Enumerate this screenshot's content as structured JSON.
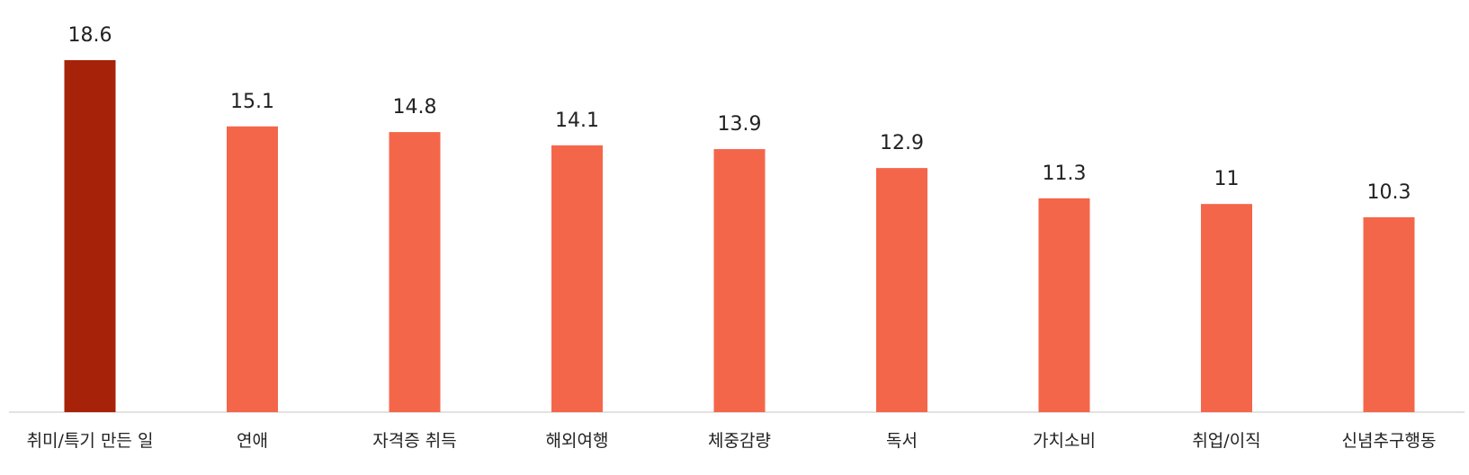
{
  "chart_data": {
    "type": "bar",
    "categories": [
      "취미/특기 만든 일",
      "연애",
      "자격증 취득",
      "해외여행",
      "체중감량",
      "독서",
      "가치소비",
      "취업/이직",
      "신념추구행동"
    ],
    "values": [
      18.6,
      15.1,
      14.8,
      14.1,
      13.9,
      12.9,
      11.3,
      11,
      10.3
    ],
    "value_labels": [
      "18.6",
      "15.1",
      "14.8",
      "14.1",
      "13.9",
      "12.9",
      "11.3",
      "11",
      "10.3"
    ],
    "ylim": [
      0,
      18.6
    ],
    "grid": false,
    "legend": "none",
    "colors": {
      "highlight": "#A6230A",
      "bar": "#F4664A",
      "axis": "#D9D9D9"
    }
  }
}
